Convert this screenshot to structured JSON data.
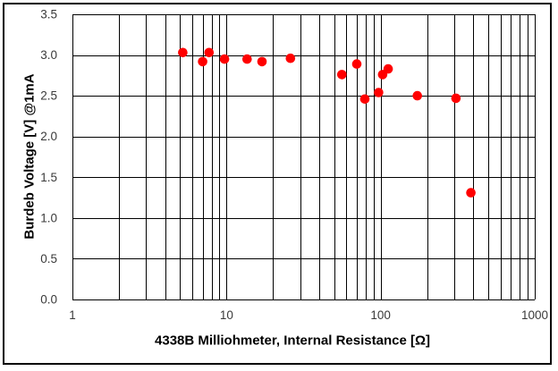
{
  "figure": {
    "background": "#ffffff",
    "border_color": "#000000",
    "gridline_color": "#000000"
  },
  "chart_data": {
    "type": "scatter",
    "title": "",
    "xlabel": "4338B Milliohmeter, Internal Resistance [Ω]",
    "ylabel": "Burdeb Voltage [V] @1mA",
    "x_scale": "log",
    "xlim": [
      1,
      1000
    ],
    "ylim": [
      0,
      3.5
    ],
    "x_tick_labels": [
      "1",
      "10",
      "100",
      "1000"
    ],
    "x_tick_values": [
      1,
      10,
      100,
      1000
    ],
    "y_tick_labels": [
      "0.0",
      "0.5",
      "1.0",
      "1.5",
      "2.0",
      "2.5",
      "3.0",
      "3.5"
    ],
    "y_tick_values": [
      0,
      0.5,
      1,
      1.5,
      2,
      2.5,
      3,
      3.5
    ],
    "minor_x_gridlines": [
      1,
      2,
      3,
      4,
      5,
      6,
      7,
      8,
      9,
      10,
      20,
      30,
      40,
      50,
      60,
      70,
      80,
      90,
      100,
      200,
      300,
      400,
      500,
      600,
      700,
      800,
      900,
      1000
    ],
    "grid": true,
    "legend": "none",
    "marker_color": "#ff0000",
    "tick_label_color": "#3a3a3a",
    "points": [
      {
        "x": 5.2,
        "y": 3.03
      },
      {
        "x": 7.0,
        "y": 2.92
      },
      {
        "x": 7.7,
        "y": 3.03
      },
      {
        "x": 9.7,
        "y": 2.95
      },
      {
        "x": 13.6,
        "y": 2.95
      },
      {
        "x": 17,
        "y": 2.92
      },
      {
        "x": 26,
        "y": 2.96
      },
      {
        "x": 56,
        "y": 2.76
      },
      {
        "x": 70,
        "y": 2.89
      },
      {
        "x": 79,
        "y": 2.46
      },
      {
        "x": 97,
        "y": 2.54
      },
      {
        "x": 103,
        "y": 2.76
      },
      {
        "x": 112,
        "y": 2.83
      },
      {
        "x": 173,
        "y": 2.5
      },
      {
        "x": 308,
        "y": 2.47
      },
      {
        "x": 385,
        "y": 1.31
      }
    ]
  }
}
